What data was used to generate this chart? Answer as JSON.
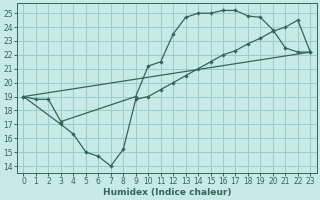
{
  "xlabel": "Humidex (Indice chaleur)",
  "bg_color": "#c8eae6",
  "grid_color": "#99cccc",
  "line_color": "#336655",
  "xlim": [
    -0.5,
    23.5
  ],
  "ylim": [
    13.5,
    25.7
  ],
  "yticks": [
    14,
    15,
    16,
    17,
    18,
    19,
    20,
    21,
    22,
    23,
    24,
    25
  ],
  "xticks": [
    0,
    1,
    2,
    3,
    4,
    5,
    6,
    7,
    8,
    9,
    10,
    11,
    12,
    13,
    14,
    15,
    16,
    17,
    18,
    19,
    20,
    21,
    22,
    23
  ],
  "line1_x": [
    0,
    1,
    2,
    3,
    9,
    10,
    11,
    12,
    13,
    14,
    15,
    16,
    17,
    18,
    19,
    20,
    21,
    22,
    23
  ],
  "line1_y": [
    19.0,
    18.8,
    18.8,
    17.2,
    19.0,
    21.2,
    21.5,
    23.5,
    24.7,
    25.0,
    25.0,
    25.2,
    25.2,
    24.8,
    24.7,
    23.8,
    22.5,
    22.2,
    22.2
  ],
  "line2_x": [
    0,
    3,
    4,
    5,
    6,
    7,
    8,
    9,
    10,
    11,
    12,
    13,
    14,
    15,
    16,
    17,
    18,
    19,
    20,
    21,
    22,
    23
  ],
  "line2_y": [
    19.0,
    17.0,
    16.3,
    15.0,
    14.7,
    14.0,
    15.2,
    18.8,
    19.0,
    19.5,
    20.0,
    20.5,
    21.0,
    21.5,
    22.0,
    22.3,
    22.8,
    23.2,
    23.7,
    24.0,
    24.5,
    22.2
  ],
  "line3_x": [
    0,
    23
  ],
  "line3_y": [
    19.0,
    22.2
  ]
}
